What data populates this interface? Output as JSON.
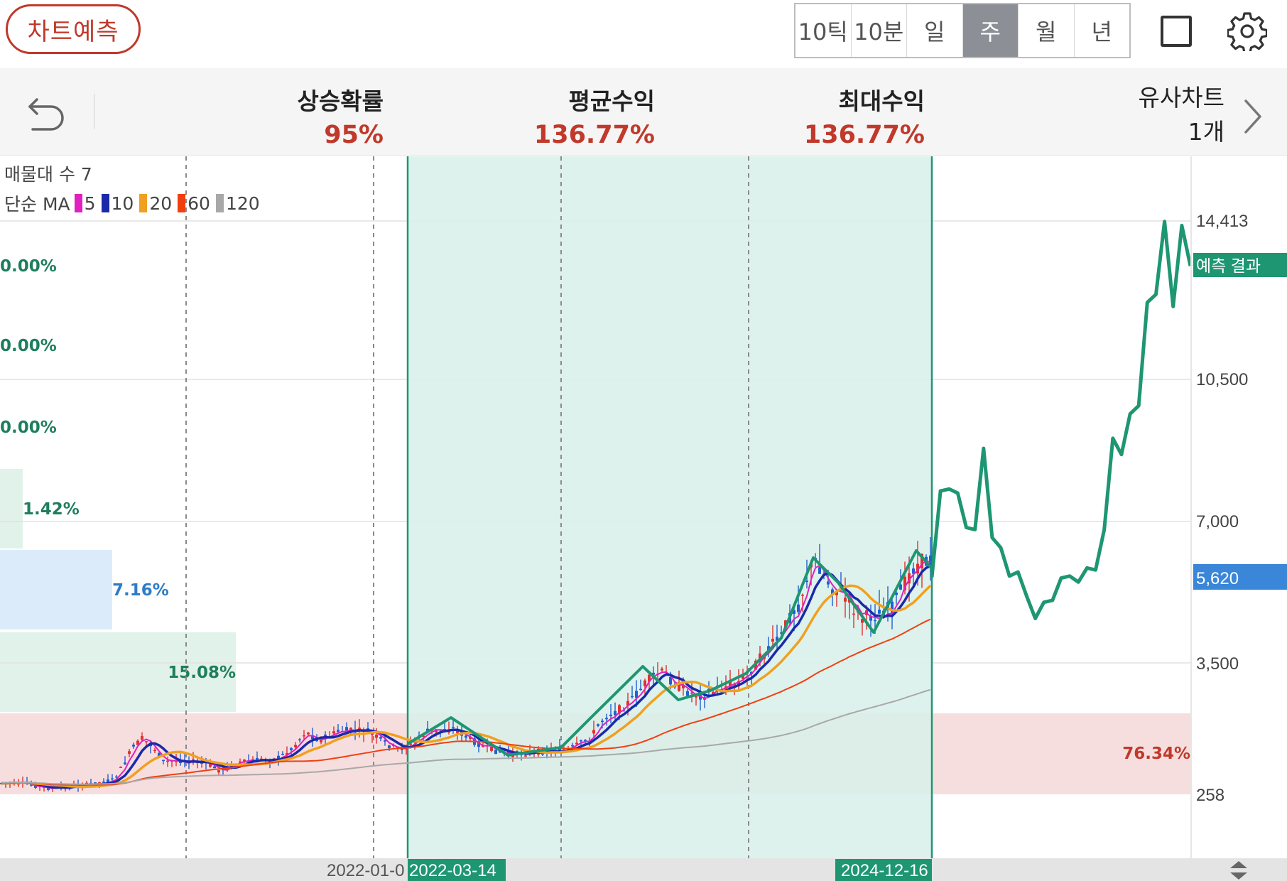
{
  "topbar": {
    "predict_button": "차트예측",
    "period_tabs": [
      "10틱",
      "10분",
      "일",
      "주",
      "월",
      "년"
    ],
    "active_period": "주"
  },
  "stats": {
    "rise_probability_label": "상승확률",
    "rise_probability_value": "95%",
    "avg_return_label": "평균수익",
    "avg_return_value": "136.77%",
    "max_return_label": "최대수익",
    "max_return_value": "136.77%",
    "similar_label": "유사차트",
    "similar_count": "1개"
  },
  "legend": {
    "volume_profile": "매물대 수 7",
    "ma_label": "단순 MA",
    "ma_periods": [
      "5",
      "10",
      "20",
      "60",
      "120"
    ],
    "ma_colors": [
      "#e020c0",
      "#1a2aa8",
      "#f0a020",
      "#f04010",
      "#a8a8a8"
    ]
  },
  "colors": {
    "up": "#e03030",
    "down": "#2060d0",
    "prediction": "#1e9672",
    "highlight_fill": "#d9f0ea",
    "price_tag": "#3a86d8",
    "volume_red": "#f7dede",
    "volume_green": "#e1f2ea",
    "volume_blue": "#dcebfa"
  },
  "chart_data": {
    "type": "line",
    "price_axis_ticks": [
      "14,413",
      "10,500",
      "7,000",
      "3,500",
      "258"
    ],
    "current_price": "5,620",
    "prediction_tag": "예측 결과",
    "date_labels": [
      "2022-01-0",
      "2022-03-14",
      "2024-12-16"
    ],
    "pattern_start_date": "2022-03-14",
    "pattern_end_date": "2024-12-16",
    "volume_profile": [
      {
        "label": "0.00%",
        "pct": 0
      },
      {
        "label": "0.00%",
        "pct": 0
      },
      {
        "label": "0.00%",
        "pct": 0
      },
      {
        "label": "1.42%",
        "pct": 1.42
      },
      {
        "label": "7.16%",
        "pct": 7.16
      },
      {
        "label": "15.08%",
        "pct": 15.08
      },
      {
        "label": "76.34%",
        "pct": 76.34
      }
    ],
    "prediction_series": [
      5620,
      7750,
      7800,
      7700,
      6850,
      6800,
      8800,
      6600,
      6350,
      5650,
      5750,
      5150,
      4600,
      5000,
      5050,
      5600,
      5650,
      5500,
      5850,
      5800,
      6800,
      9050,
      8650,
      9650,
      9850,
      12400,
      12600,
      14400,
      12300,
      14300,
      13300
    ]
  }
}
